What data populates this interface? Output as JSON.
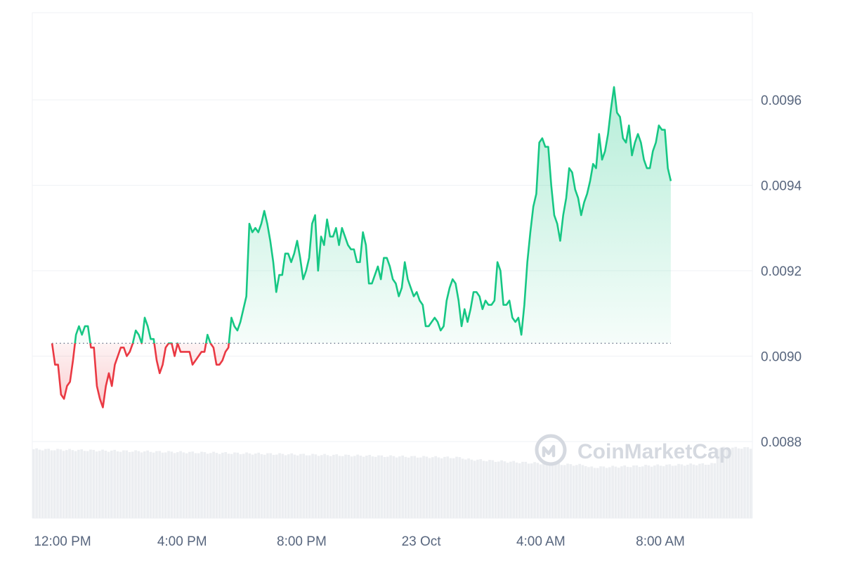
{
  "chart_data": {
    "type": "line",
    "title": "",
    "xlabel": "",
    "ylabel": "",
    "baseline": 0.00903,
    "ylim": [
      0.0086,
      0.0098
    ],
    "y_ticks": [
      {
        "value": 0.0096,
        "label": "0.0096"
      },
      {
        "value": 0.0094,
        "label": "0.0094"
      },
      {
        "value": 0.0092,
        "label": "0.0092"
      },
      {
        "value": 0.009,
        "label": "0.0090"
      },
      {
        "value": 0.0088,
        "label": "0.0088"
      }
    ],
    "x_range_hours": [
      11.65,
      35.0
    ],
    "x_ticks": [
      {
        "hour": 12,
        "label": "12:00 PM"
      },
      {
        "hour": 16,
        "label": "4:00 PM"
      },
      {
        "hour": 20,
        "label": "8:00 PM"
      },
      {
        "hour": 24,
        "label": "23 Oct"
      },
      {
        "hour": 28,
        "label": "4:00 AM"
      },
      {
        "hour": 32,
        "label": "8:00 AM"
      }
    ],
    "series": [
      {
        "points": [
          [
            11.65,
            0.00903
          ],
          [
            11.75,
            0.00898
          ],
          [
            11.85,
            0.00898
          ],
          [
            11.95,
            0.00891
          ],
          [
            12.05,
            0.0089
          ],
          [
            12.15,
            0.00893
          ],
          [
            12.25,
            0.00894
          ],
          [
            12.35,
            0.00899
          ],
          [
            12.45,
            0.00905
          ],
          [
            12.55,
            0.00907
          ],
          [
            12.65,
            0.00905
          ],
          [
            12.75,
            0.00907
          ],
          [
            12.85,
            0.00907
          ],
          [
            12.95,
            0.00902
          ],
          [
            13.05,
            0.00902
          ],
          [
            13.15,
            0.00893
          ],
          [
            13.25,
            0.0089
          ],
          [
            13.35,
            0.00888
          ],
          [
            13.45,
            0.00893
          ],
          [
            13.55,
            0.00896
          ],
          [
            13.65,
            0.00893
          ],
          [
            13.75,
            0.00898
          ],
          [
            13.85,
            0.009
          ],
          [
            13.95,
            0.00902
          ],
          [
            14.05,
            0.00902
          ],
          [
            14.15,
            0.009
          ],
          [
            14.25,
            0.00901
          ],
          [
            14.35,
            0.00903
          ],
          [
            14.45,
            0.00906
          ],
          [
            14.55,
            0.00905
          ],
          [
            14.65,
            0.00903
          ],
          [
            14.75,
            0.00909
          ],
          [
            14.85,
            0.00907
          ],
          [
            14.95,
            0.00904
          ],
          [
            15.05,
            0.00904
          ],
          [
            15.15,
            0.00899
          ],
          [
            15.25,
            0.00896
          ],
          [
            15.35,
            0.00898
          ],
          [
            15.45,
            0.00902
          ],
          [
            15.55,
            0.00903
          ],
          [
            15.65,
            0.00903
          ],
          [
            15.75,
            0.009
          ],
          [
            15.85,
            0.00903
          ],
          [
            15.95,
            0.00901
          ],
          [
            16.05,
            0.00901
          ],
          [
            16.15,
            0.00901
          ],
          [
            16.25,
            0.00901
          ],
          [
            16.35,
            0.00898
          ],
          [
            16.45,
            0.00899
          ],
          [
            16.55,
            0.009
          ],
          [
            16.65,
            0.00901
          ],
          [
            16.75,
            0.00901
          ],
          [
            16.85,
            0.00905
          ],
          [
            16.95,
            0.00903
          ],
          [
            17.05,
            0.00902
          ],
          [
            17.15,
            0.00898
          ],
          [
            17.25,
            0.00898
          ],
          [
            17.35,
            0.00899
          ],
          [
            17.45,
            0.00901
          ],
          [
            17.55,
            0.00902
          ],
          [
            17.65,
            0.00909
          ],
          [
            17.75,
            0.00907
          ],
          [
            17.85,
            0.00906
          ],
          [
            17.95,
            0.00908
          ],
          [
            18.05,
            0.00911
          ],
          [
            18.15,
            0.00914
          ],
          [
            18.25,
            0.00931
          ],
          [
            18.35,
            0.00929
          ],
          [
            18.45,
            0.0093
          ],
          [
            18.55,
            0.00929
          ],
          [
            18.65,
            0.00931
          ],
          [
            18.75,
            0.00934
          ],
          [
            18.85,
            0.00931
          ],
          [
            18.95,
            0.00927
          ],
          [
            19.05,
            0.00922
          ],
          [
            19.15,
            0.00915
          ],
          [
            19.25,
            0.00919
          ],
          [
            19.35,
            0.00919
          ],
          [
            19.45,
            0.00924
          ],
          [
            19.55,
            0.00924
          ],
          [
            19.65,
            0.00922
          ],
          [
            19.75,
            0.00924
          ],
          [
            19.85,
            0.00927
          ],
          [
            19.95,
            0.00923
          ],
          [
            20.05,
            0.00918
          ],
          [
            20.15,
            0.0092
          ],
          [
            20.25,
            0.00923
          ],
          [
            20.35,
            0.00931
          ],
          [
            20.45,
            0.00933
          ],
          [
            20.55,
            0.0092
          ],
          [
            20.65,
            0.00928
          ],
          [
            20.75,
            0.00926
          ],
          [
            20.85,
            0.00932
          ],
          [
            20.95,
            0.00928
          ],
          [
            21.05,
            0.00928
          ],
          [
            21.15,
            0.0093
          ],
          [
            21.25,
            0.00926
          ],
          [
            21.35,
            0.0093
          ],
          [
            21.45,
            0.00928
          ],
          [
            21.55,
            0.00926
          ],
          [
            21.65,
            0.00925
          ],
          [
            21.75,
            0.00925
          ],
          [
            21.85,
            0.00922
          ],
          [
            21.95,
            0.00922
          ],
          [
            22.05,
            0.00929
          ],
          [
            22.15,
            0.00926
          ],
          [
            22.25,
            0.00917
          ],
          [
            22.35,
            0.00917
          ],
          [
            22.45,
            0.00919
          ],
          [
            22.55,
            0.00921
          ],
          [
            22.65,
            0.00918
          ],
          [
            22.75,
            0.00923
          ],
          [
            22.85,
            0.00923
          ],
          [
            22.95,
            0.00921
          ],
          [
            23.05,
            0.00918
          ],
          [
            23.15,
            0.00917
          ],
          [
            23.25,
            0.00914
          ],
          [
            23.35,
            0.00916
          ],
          [
            23.45,
            0.00922
          ],
          [
            23.55,
            0.00918
          ],
          [
            23.65,
            0.00916
          ],
          [
            23.75,
            0.00914
          ],
          [
            23.85,
            0.00915
          ],
          [
            23.95,
            0.00913
          ],
          [
            24.05,
            0.00912
          ],
          [
            24.15,
            0.00907
          ],
          [
            24.25,
            0.00907
          ],
          [
            24.35,
            0.00908
          ],
          [
            24.45,
            0.00909
          ],
          [
            24.55,
            0.00908
          ],
          [
            24.65,
            0.00906
          ],
          [
            24.75,
            0.00907
          ],
          [
            24.85,
            0.00913
          ],
          [
            24.95,
            0.00916
          ],
          [
            25.05,
            0.00918
          ],
          [
            25.15,
            0.00917
          ],
          [
            25.25,
            0.00913
          ],
          [
            25.35,
            0.00907
          ],
          [
            25.45,
            0.00911
          ],
          [
            25.55,
            0.00908
          ],
          [
            25.65,
            0.00911
          ],
          [
            25.75,
            0.00915
          ],
          [
            25.85,
            0.00915
          ],
          [
            25.95,
            0.00914
          ],
          [
            26.05,
            0.00911
          ],
          [
            26.15,
            0.00913
          ],
          [
            26.25,
            0.00912
          ],
          [
            26.35,
            0.00912
          ],
          [
            26.45,
            0.00913
          ],
          [
            26.55,
            0.00922
          ],
          [
            26.65,
            0.0092
          ],
          [
            26.75,
            0.00912
          ],
          [
            26.85,
            0.00912
          ],
          [
            26.95,
            0.00913
          ],
          [
            27.05,
            0.00909
          ],
          [
            27.15,
            0.00908
          ],
          [
            27.25,
            0.00909
          ],
          [
            27.35,
            0.00905
          ],
          [
            27.45,
            0.00912
          ],
          [
            27.55,
            0.00922
          ],
          [
            27.65,
            0.00929
          ],
          [
            27.75,
            0.00935
          ],
          [
            27.85,
            0.00938
          ],
          [
            27.95,
            0.0095
          ],
          [
            28.05,
            0.00951
          ],
          [
            28.15,
            0.00949
          ],
          [
            28.25,
            0.00949
          ],
          [
            28.35,
            0.0094
          ],
          [
            28.45,
            0.00933
          ],
          [
            28.55,
            0.00931
          ],
          [
            28.65,
            0.00927
          ],
          [
            28.75,
            0.00933
          ],
          [
            28.85,
            0.00937
          ],
          [
            28.95,
            0.00944
          ],
          [
            29.05,
            0.00943
          ],
          [
            29.15,
            0.00939
          ],
          [
            29.25,
            0.00937
          ],
          [
            29.35,
            0.00933
          ],
          [
            29.45,
            0.00936
          ],
          [
            29.55,
            0.00938
          ],
          [
            29.65,
            0.00941
          ],
          [
            29.75,
            0.00945
          ],
          [
            29.85,
            0.00944
          ],
          [
            29.95,
            0.00952
          ],
          [
            30.05,
            0.00946
          ],
          [
            30.15,
            0.00948
          ],
          [
            30.25,
            0.00952
          ],
          [
            30.35,
            0.00958
          ],
          [
            30.45,
            0.00963
          ],
          [
            30.55,
            0.00957
          ],
          [
            30.65,
            0.00956
          ],
          [
            30.75,
            0.00951
          ],
          [
            30.85,
            0.0095
          ],
          [
            30.95,
            0.00954
          ],
          [
            31.05,
            0.00947
          ],
          [
            31.15,
            0.0095
          ],
          [
            31.25,
            0.00952
          ],
          [
            31.35,
            0.0095
          ],
          [
            31.45,
            0.00946
          ],
          [
            31.55,
            0.00944
          ],
          [
            31.65,
            0.00944
          ],
          [
            31.75,
            0.00948
          ],
          [
            31.85,
            0.0095
          ],
          [
            31.95,
            0.00954
          ],
          [
            32.05,
            0.00953
          ],
          [
            32.15,
            0.00953
          ],
          [
            32.25,
            0.00944
          ],
          [
            32.35,
            0.00941
          ]
        ]
      }
    ]
  },
  "watermark": {
    "text": "CoinMarketCap",
    "icon": "coinmarketcap-logo-icon"
  },
  "colors": {
    "up_line": "#16c784",
    "down_line": "#ea3943",
    "grid": "#eff2f5",
    "axis_text": "#58667e",
    "volume": "#eceef1",
    "watermark": "#d5d9e0"
  }
}
